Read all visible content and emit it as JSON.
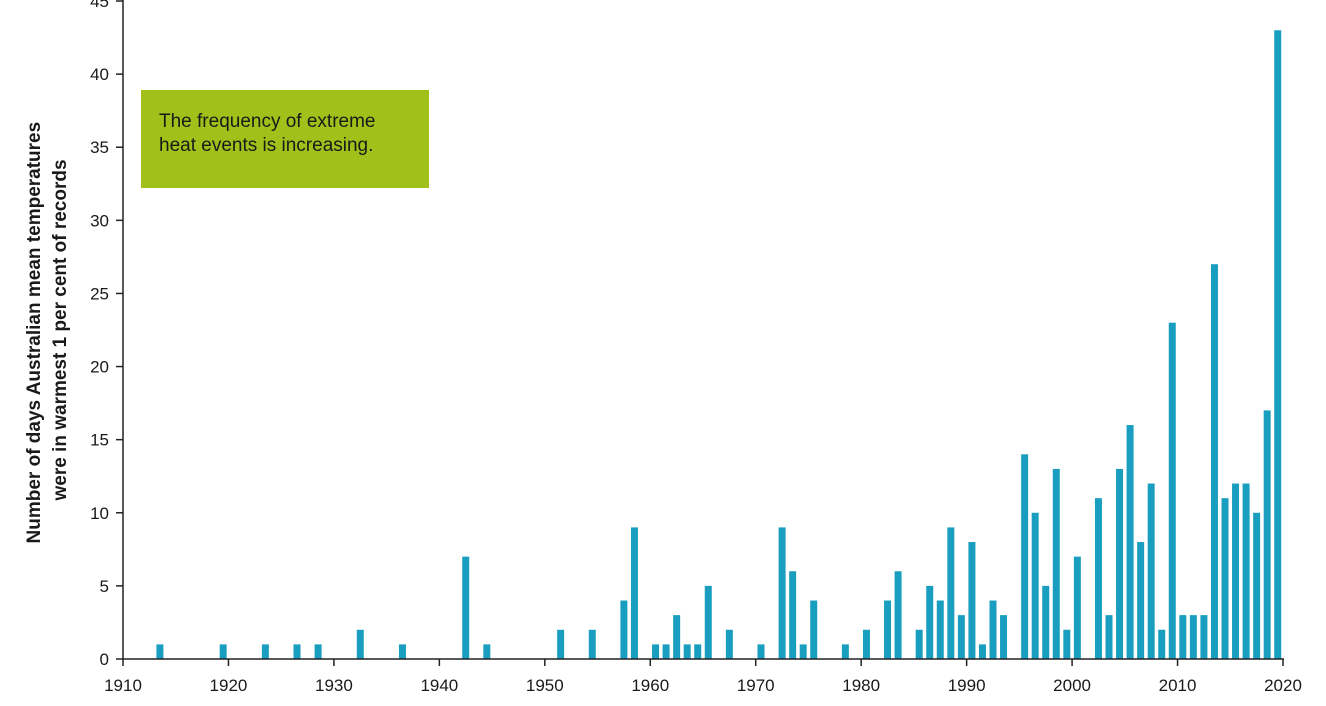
{
  "callout": {
    "line1": "The frequency of extreme",
    "line2": "heat events is increasing."
  },
  "colors": {
    "bar": "#1a9ec0",
    "callout_bg": "#a2c01a",
    "axis": "#222222"
  },
  "chart_data": {
    "type": "bar",
    "title": "",
    "xlabel": "",
    "ylabel_lines": [
      "Number of days Australian mean temperatures",
      "were in warmest 1 per cent of records"
    ],
    "xlim": [
      1910,
      2020
    ],
    "ylim": [
      0,
      45
    ],
    "xticks": [
      1910,
      1920,
      1930,
      1940,
      1950,
      1960,
      1970,
      1980,
      1990,
      2000,
      2010,
      2020
    ],
    "yticks": [
      0,
      5,
      10,
      15,
      20,
      25,
      30,
      35,
      40,
      45
    ],
    "grid": false,
    "x": [
      1913,
      1919,
      1923,
      1926,
      1928,
      1932,
      1936,
      1942,
      1944,
      1951,
      1954,
      1957,
      1958,
      1960,
      1961,
      1962,
      1963,
      1964,
      1965,
      1967,
      1970,
      1972,
      1973,
      1974,
      1975,
      1978,
      1980,
      1982,
      1983,
      1985,
      1986,
      1987,
      1988,
      1989,
      1990,
      1991,
      1992,
      1993,
      1995,
      1996,
      1997,
      1998,
      1999,
      2000,
      2002,
      2003,
      2004,
      2005,
      2006,
      2007,
      2008,
      2009,
      2010,
      2011,
      2012,
      2013,
      2014,
      2015,
      2016,
      2017,
      2018,
      2019
    ],
    "values": [
      1,
      1,
      1,
      1,
      1,
      2,
      1,
      7,
      1,
      2,
      2,
      4,
      9,
      1,
      1,
      3,
      1,
      1,
      5,
      2,
      1,
      9,
      6,
      1,
      4,
      1,
      2,
      4,
      6,
      2,
      5,
      4,
      9,
      3,
      8,
      1,
      4,
      3,
      14,
      10,
      5,
      13,
      2,
      7,
      11,
      3,
      13,
      16,
      8,
      12,
      2,
      23,
      3,
      3,
      3,
      27,
      11,
      12,
      12,
      10,
      17,
      43
    ]
  }
}
